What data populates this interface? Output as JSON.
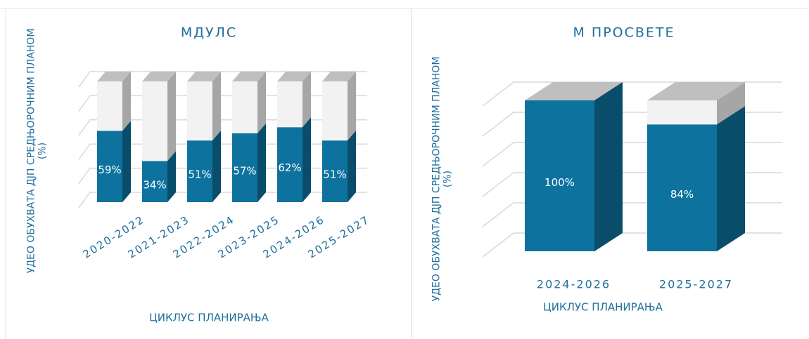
{
  "chart_data": [
    {
      "type": "bar3d",
      "title": "МДУЛС",
      "y_label": "УДЕО ОБУХВАТА ДЈП СРЕДЊОРОЧНИМ ПЛАНОМ (%)",
      "x_label": "ЦИКЛУС ПЛАНИРАЊА",
      "categories": [
        "2020-2022",
        "2021-2023",
        "2022-2024",
        "2023-2025",
        "2024-2026",
        "2025-2027"
      ],
      "values": [
        59,
        34,
        51,
        57,
        62,
        51
      ],
      "value_labels": [
        "59%",
        "34%",
        "51%",
        "57%",
        "62%",
        "51%"
      ],
      "color": "#0e729e",
      "ylim": [
        0,
        100
      ],
      "yticks": [
        0,
        20,
        40,
        60,
        80,
        100
      ],
      "grid": true
    },
    {
      "type": "bar3d",
      "title": "М ПРОСВЕТЕ",
      "y_label": "УДЕО ОБУХВАТА ДЈП СРЕДЊОРОЧНИМ ПЛАНОМ (%)",
      "x_label": "ЦИКЛУС ПЛАНИРАЊА",
      "categories": [
        "2024-2026",
        "2025-2027"
      ],
      "values": [
        100,
        84
      ],
      "value_labels": [
        "100%",
        "84%"
      ],
      "color": "#0e729e",
      "ylim": [
        0,
        100
      ],
      "yticks": [
        0,
        20,
        40,
        60,
        80,
        100
      ],
      "grid": true
    }
  ]
}
